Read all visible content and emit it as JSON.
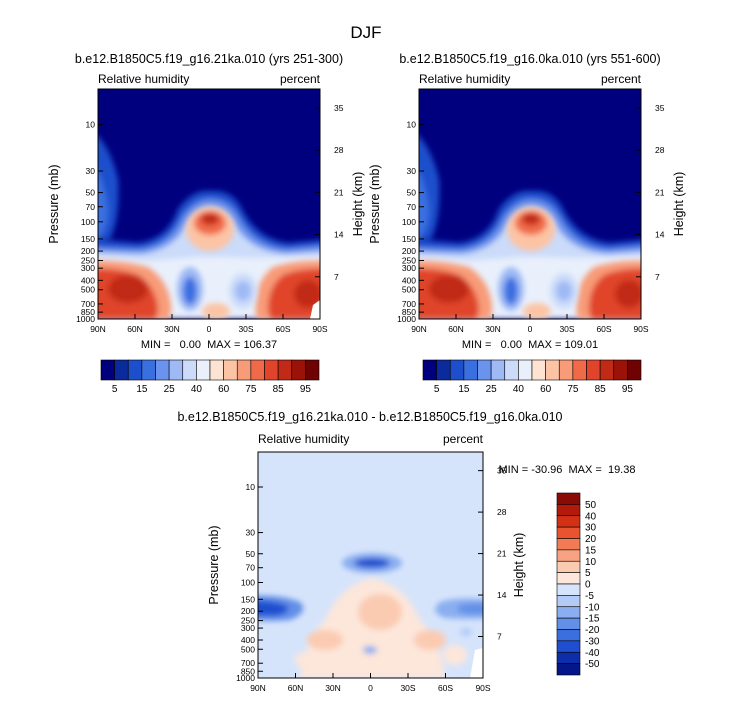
{
  "figure": {
    "main_title": "DJF"
  },
  "chart_data": [
    {
      "type": "heatmap",
      "title": "b.e12.B1850C5.f19_g16.21ka.010 (yrs 251-300)",
      "left_label": "Relative humidity",
      "right_label": "percent",
      "ylabel": "Pressure (mb)",
      "ylabel_right": "Height (km)",
      "x_ticks": [
        "90N",
        "60N",
        "30N",
        "0",
        "30S",
        "60S",
        "90S"
      ],
      "y_ticks": [
        "10",
        "30",
        "50",
        "70",
        "100",
        "150",
        "200",
        "250",
        "300",
        "400",
        "500",
        "700",
        "850",
        "1000"
      ],
      "y_ticks_right": [
        "35",
        "28",
        "21",
        "14",
        "7"
      ],
      "stats": "MIN =   0.00  MAX = 106.37",
      "colorbar_labels": [
        "5",
        "15",
        "25",
        "40",
        "60",
        "75",
        "85",
        "95"
      ],
      "colorbar_colors": [
        "#00007f",
        "#0b2a9c",
        "#1d4fcc",
        "#3a6fe0",
        "#6a93ee",
        "#9fb9f5",
        "#cbdbf9",
        "#e9f0fc",
        "#fde4d2",
        "#fcc4a4",
        "#f89b78",
        "#f06a4a",
        "#e0452b",
        "#c12a17",
        "#9b1308",
        "#6f0303"
      ]
    },
    {
      "type": "heatmap",
      "title": "b.e12.B1850C5.f19_g16.0ka.010 (yrs 551-600)",
      "left_label": "Relative humidity",
      "right_label": "percent",
      "ylabel": "Pressure (mb)",
      "ylabel_right": "Height (km)",
      "x_ticks": [
        "90N",
        "60N",
        "30N",
        "0",
        "30S",
        "60S",
        "90S"
      ],
      "y_ticks": [
        "10",
        "30",
        "50",
        "70",
        "100",
        "150",
        "200",
        "250",
        "300",
        "400",
        "500",
        "700",
        "850",
        "1000"
      ],
      "y_ticks_right": [
        "35",
        "28",
        "21",
        "14",
        "7"
      ],
      "stats": "MIN =   0.00  MAX = 109.01",
      "colorbar_labels": [
        "5",
        "15",
        "25",
        "40",
        "60",
        "75",
        "85",
        "95"
      ],
      "colorbar_colors": [
        "#00007f",
        "#0b2a9c",
        "#1d4fcc",
        "#3a6fe0",
        "#6a93ee",
        "#9fb9f5",
        "#cbdbf9",
        "#e9f0fc",
        "#fde4d2",
        "#fcc4a4",
        "#f89b78",
        "#f06a4a",
        "#e0452b",
        "#c12a17",
        "#9b1308",
        "#6f0303"
      ]
    },
    {
      "type": "heatmap",
      "title": "b.e12.B1850C5.f19_g16.21ka.010 - b.e12.B1850C5.f19_g16.0ka.010",
      "left_label": "Relative humidity",
      "right_label": "percent",
      "ylabel": "Pressure (mb)",
      "ylabel_right": "Height (km)",
      "x_ticks": [
        "90N",
        "60N",
        "30N",
        "0",
        "30S",
        "60S",
        "90S"
      ],
      "y_ticks": [
        "10",
        "30",
        "50",
        "70",
        "100",
        "150",
        "200",
        "250",
        "300",
        "400",
        "500",
        "700",
        "850",
        "1000"
      ],
      "y_ticks_right": [
        "35",
        "28",
        "21",
        "14",
        "7"
      ],
      "stats": "MIN = -30.96  MAX =  19.38",
      "colorbar_labels": [
        "50",
        "40",
        "30",
        "20",
        "15",
        "10",
        "5",
        "0",
        "-5",
        "-10",
        "-15",
        "-20",
        "-30",
        "-40",
        "-50"
      ],
      "colorbar_colors": [
        "#8b0a05",
        "#b41a0c",
        "#d43016",
        "#ea5330",
        "#f27a55",
        "#f7a383",
        "#fbcbb1",
        "#fde6da",
        "#d6e4fb",
        "#b3cbf6",
        "#8aaef0",
        "#628fe8",
        "#3b6fe0",
        "#1f4fd0",
        "#0c2eab",
        "#05158a"
      ]
    }
  ]
}
